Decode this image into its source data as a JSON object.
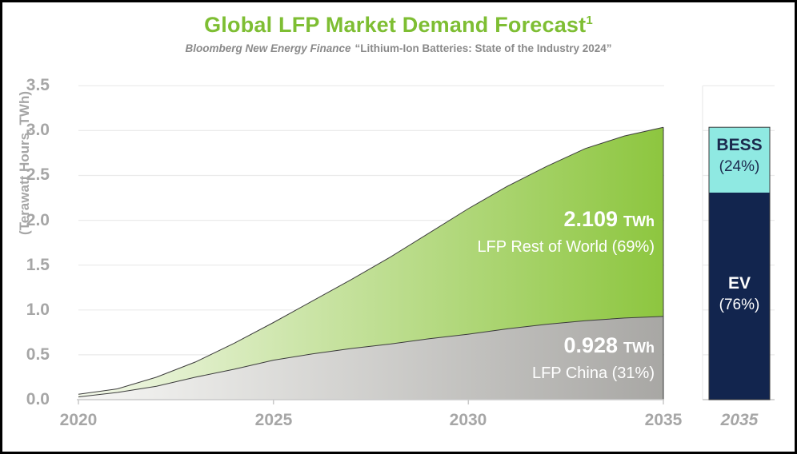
{
  "title": {
    "text": "Global LFP Market Demand Forecast",
    "superscript": "1"
  },
  "subtitle": {
    "source": "Bloomberg New Energy Finance",
    "report": "“Lithium-Ion Batteries: State of the Industry 2024”"
  },
  "y_axis": {
    "label": "(Terawatt Hours, TWh)",
    "ticks": [
      "3.5",
      "3.0",
      "2.5",
      "2.0",
      "1.5",
      "1.0",
      "0.5",
      "0.0"
    ]
  },
  "x_axis": {
    "ticks": [
      "2020",
      "2025",
      "2030",
      "2035"
    ]
  },
  "annotations": {
    "rest_of_world": {
      "value": "2.109",
      "unit": "TWh",
      "label": "LFP Rest of World (69%)"
    },
    "china": {
      "value": "0.928",
      "unit": "TWh",
      "label": "LFP China (31%)"
    }
  },
  "bar": {
    "x_label": "2035",
    "segments": [
      {
        "name": "BESS",
        "pct": "(24%)",
        "value": 24,
        "color": "#8FE9E2",
        "text_color": "#1B2A4E"
      },
      {
        "name": "EV",
        "pct": "(76%)",
        "value": 76,
        "color": "#12254E",
        "text_color": "#FFFFFF"
      }
    ]
  },
  "style": {
    "title_green": "#7EBE33",
    "subtitle_gray": "#8A8A8A",
    "axis_text": "#A6A6A6",
    "gridline": "#EAEAEA",
    "axis_line": "#C9C9C9",
    "area_outline": "#3C3C3C",
    "green_start": "#F3F8EA",
    "green_end": "#8DC63F",
    "gray_start": "#F7F7F5",
    "gray_end": "#A8A7A4",
    "bar_outline": "#3D3D3D",
    "annotation_text": "#FFFFFF"
  },
  "chart_data": {
    "type": "area",
    "stacked": true,
    "title": "Global LFP Market Demand Forecast¹",
    "subtitle": "Bloomberg New Energy Finance “Lithium-Ion Batteries: State of the Industry 2024”",
    "ylabel": "(Terawatt Hours, TWh)",
    "ylim": [
      0,
      3.5
    ],
    "grid": "horizontal",
    "x": [
      2020,
      2021,
      2022,
      2023,
      2024,
      2025,
      2026,
      2027,
      2028,
      2029,
      2030,
      2031,
      2032,
      2033,
      2034,
      2035
    ],
    "xticks": [
      2020,
      2025,
      2030,
      2035
    ],
    "series": [
      {
        "name": "LFP China",
        "share": "31%",
        "final_value_TWh": 0.928,
        "values": [
          0.03,
          0.08,
          0.15,
          0.25,
          0.34,
          0.44,
          0.51,
          0.57,
          0.62,
          0.68,
          0.73,
          0.79,
          0.84,
          0.88,
          0.91,
          0.928
        ]
      },
      {
        "name": "LFP Rest of World",
        "share": "69%",
        "final_value_TWh": 2.109,
        "values": [
          0.03,
          0.04,
          0.1,
          0.17,
          0.29,
          0.42,
          0.59,
          0.77,
          0.97,
          1.18,
          1.4,
          1.59,
          1.76,
          1.92,
          2.03,
          2.109
        ]
      }
    ],
    "total_2035_TWh": 3.037,
    "bar_2035": {
      "x_label": "2035",
      "segments": [
        {
          "name": "BESS",
          "share_pct": 24
        },
        {
          "name": "EV",
          "share_pct": 76
        }
      ]
    }
  }
}
